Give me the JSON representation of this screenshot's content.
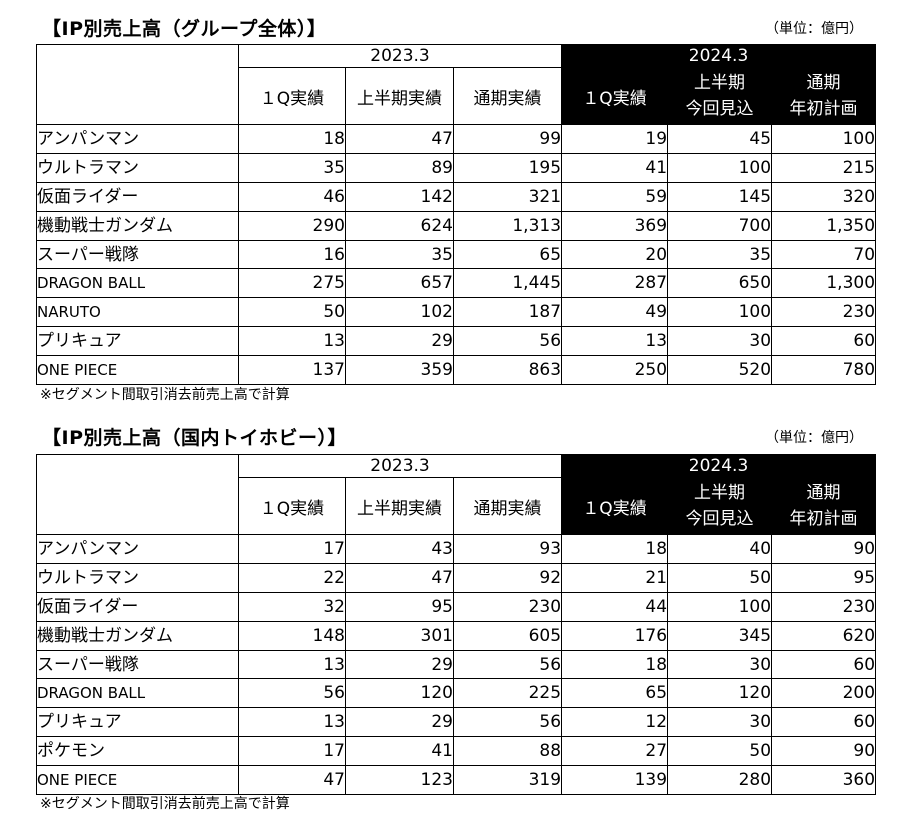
{
  "tables": [
    {
      "title": "【IP別売上高（グループ全体）】",
      "unit": "（単位：億円）",
      "note": "※セグメント間取引消去前売上高で計算",
      "year_prev": "2023.3",
      "year_curr": "2024.3",
      "col_prev": [
        "１Q実績",
        "上半期実績",
        "通期実績"
      ],
      "col_curr_q1": "１Q実績",
      "col_curr_half": [
        "上半期",
        "今回見込"
      ],
      "col_curr_full": [
        "通期",
        "年初計画"
      ],
      "rows": [
        {
          "name": "アンパンマン",
          "values": [
            "18",
            "47",
            "99",
            "19",
            "45",
            "100"
          ]
        },
        {
          "name": "ウルトラマン",
          "values": [
            "35",
            "89",
            "195",
            "41",
            "100",
            "215"
          ]
        },
        {
          "name": "仮面ライダー",
          "values": [
            "46",
            "142",
            "321",
            "59",
            "145",
            "320"
          ]
        },
        {
          "name": "機動戦士ガンダム",
          "values": [
            "290",
            "624",
            "1,313",
            "369",
            "700",
            "1,350"
          ]
        },
        {
          "name": "スーパー戦隊",
          "values": [
            "16",
            "35",
            "65",
            "20",
            "35",
            "70"
          ]
        },
        {
          "name": "DRAGON BALL",
          "values": [
            "275",
            "657",
            "1,445",
            "287",
            "650",
            "1,300"
          ]
        },
        {
          "name": "NARUTO",
          "values": [
            "50",
            "102",
            "187",
            "49",
            "100",
            "230"
          ]
        },
        {
          "name": "プリキュア",
          "values": [
            "13",
            "29",
            "56",
            "13",
            "30",
            "60"
          ]
        },
        {
          "name": "ONE PIECE",
          "values": [
            "137",
            "359",
            "863",
            "250",
            "520",
            "780"
          ]
        }
      ]
    },
    {
      "title": "【IP別売上高（国内トイホビー）】",
      "unit": "（単位：億円）",
      "note": "※セグメント間取引消去前売上高で計算",
      "year_prev": "2023.3",
      "year_curr": "2024.3",
      "col_prev": [
        "１Q実績",
        "上半期実績",
        "通期実績"
      ],
      "col_curr_q1": "１Q実績",
      "col_curr_half": [
        "上半期",
        "今回見込"
      ],
      "col_curr_full": [
        "通期",
        "年初計画"
      ],
      "rows": [
        {
          "name": "アンパンマン",
          "values": [
            "17",
            "43",
            "93",
            "18",
            "40",
            "90"
          ]
        },
        {
          "name": "ウルトラマン",
          "values": [
            "22",
            "47",
            "92",
            "21",
            "50",
            "95"
          ]
        },
        {
          "name": "仮面ライダー",
          "values": [
            "32",
            "95",
            "230",
            "44",
            "100",
            "230"
          ]
        },
        {
          "name": "機動戦士ガンダム",
          "values": [
            "148",
            "301",
            "605",
            "176",
            "345",
            "620"
          ]
        },
        {
          "name": "スーパー戦隊",
          "values": [
            "13",
            "29",
            "56",
            "18",
            "30",
            "60"
          ]
        },
        {
          "name": "DRAGON BALL",
          "values": [
            "56",
            "120",
            "225",
            "65",
            "120",
            "200"
          ]
        },
        {
          "name": "プリキュア",
          "values": [
            "13",
            "29",
            "56",
            "12",
            "30",
            "60"
          ]
        },
        {
          "name": "ポケモン",
          "values": [
            "17",
            "41",
            "88",
            "27",
            "50",
            "90"
          ]
        },
        {
          "name": "ONE PIECE",
          "values": [
            "47",
            "123",
            "319",
            "139",
            "280",
            "360"
          ]
        }
      ]
    }
  ]
}
